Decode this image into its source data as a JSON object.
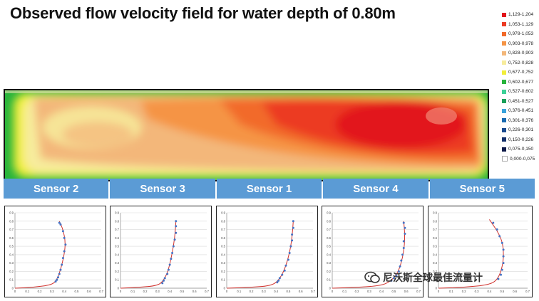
{
  "title": "Observed flow velocity field for water depth of 0.80m",
  "legend": [
    {
      "label": "1,129-1,204",
      "color": "#e2141b"
    },
    {
      "label": "1,053-1,129",
      "color": "#ec3b24"
    },
    {
      "label": "0,978-1,053",
      "color": "#f26a2a"
    },
    {
      "label": "0,903-0,978",
      "color": "#f59445"
    },
    {
      "label": "0,828-0,903",
      "color": "#f3b77a"
    },
    {
      "label": "0,752-0,828",
      "color": "#f7ec9c"
    },
    {
      "label": "0,677-0,752",
      "color": "#f2ee39"
    },
    {
      "label": "0,602-0,677",
      "color": "#28b43c"
    },
    {
      "label": "0,527-0,602",
      "color": "#3cd197"
    },
    {
      "label": "0,451-0,527",
      "color": "#1aa05a"
    },
    {
      "label": "0,376-0,451",
      "color": "#3aa3dc"
    },
    {
      "label": "0,301-0,376",
      "color": "#1a6ab0"
    },
    {
      "label": "0,226-0,301",
      "color": "#1b4b8f"
    },
    {
      "label": "0,150-0,226",
      "color": "#14306a"
    },
    {
      "label": "0,075-0,150",
      "color": "#0e1a48"
    },
    {
      "label": "0,000-0,075",
      "color": "#ffffff"
    }
  ],
  "sensors": [
    "Sensor 2",
    "Sensor 3",
    "Sensor 1",
    "Sensor 4",
    "Sensor 5"
  ],
  "watermark": "尼沃斯全球最佳流量计",
  "chart_data": [
    {
      "type": "scatter",
      "title": "Sensor 2",
      "xlim": [
        0,
        0.7
      ],
      "ylim": [
        0,
        0.9
      ],
      "xticks": [
        "0",
        "0.1",
        "0.2",
        "0.3",
        "0.4",
        "0.5",
        "0.6",
        "0.7"
      ],
      "yticks": [
        "0",
        "0.1",
        "0.2",
        "0.3",
        "0.4",
        "0.5",
        "0.6",
        "0.7",
        "0.8",
        "0.9"
      ],
      "points": [
        [
          0.36,
          0.78
        ],
        [
          0.37,
          0.76
        ],
        [
          0.39,
          0.68
        ],
        [
          0.4,
          0.6
        ],
        [
          0.41,
          0.52
        ],
        [
          0.4,
          0.44
        ],
        [
          0.39,
          0.36
        ],
        [
          0.38,
          0.28
        ],
        [
          0.37,
          0.22
        ],
        [
          0.36,
          0.17
        ],
        [
          0.35,
          0.13
        ],
        [
          0.34,
          0.1
        ],
        [
          0.33,
          0.08
        ]
      ],
      "curve": [
        [
          0.0,
          0.0
        ],
        [
          0.15,
          0.01
        ],
        [
          0.3,
          0.04
        ],
        [
          0.34,
          0.1
        ],
        [
          0.37,
          0.22
        ],
        [
          0.4,
          0.4
        ],
        [
          0.41,
          0.55
        ],
        [
          0.39,
          0.7
        ],
        [
          0.36,
          0.8
        ]
      ]
    },
    {
      "type": "scatter",
      "title": "Sensor 3",
      "xlim": [
        0,
        0.7
      ],
      "ylim": [
        0,
        0.9
      ],
      "xticks": [
        "0",
        "0.1",
        "0.2",
        "0.3",
        "0.4",
        "0.5",
        "0.6",
        "0.7"
      ],
      "yticks": [
        "0",
        "0.1",
        "0.2",
        "0.3",
        "0.4",
        "0.5",
        "0.6",
        "0.7",
        "0.8",
        "0.9"
      ],
      "points": [
        [
          0.45,
          0.8
        ],
        [
          0.45,
          0.74
        ],
        [
          0.45,
          0.66
        ],
        [
          0.44,
          0.58
        ],
        [
          0.43,
          0.5
        ],
        [
          0.42,
          0.42
        ],
        [
          0.41,
          0.35
        ],
        [
          0.4,
          0.28
        ],
        [
          0.39,
          0.22
        ],
        [
          0.38,
          0.17
        ],
        [
          0.36,
          0.12
        ],
        [
          0.35,
          0.09
        ],
        [
          0.34,
          0.06
        ]
      ],
      "curve": [
        [
          0.0,
          0.0
        ],
        [
          0.15,
          0.01
        ],
        [
          0.3,
          0.03
        ],
        [
          0.35,
          0.09
        ],
        [
          0.39,
          0.22
        ],
        [
          0.42,
          0.42
        ],
        [
          0.44,
          0.6
        ],
        [
          0.45,
          0.8
        ]
      ]
    },
    {
      "type": "scatter",
      "title": "Sensor 1",
      "xlim": [
        0,
        0.7
      ],
      "ylim": [
        0,
        0.9
      ],
      "xticks": [
        "0",
        "0.1",
        "0.2",
        "0.3",
        "0.4",
        "0.5",
        "0.6",
        "0.7"
      ],
      "yticks": [
        "0",
        "0.1",
        "0.2",
        "0.3",
        "0.4",
        "0.5",
        "0.6",
        "0.7",
        "0.8",
        "0.9"
      ],
      "points": [
        [
          0.54,
          0.8
        ],
        [
          0.54,
          0.72
        ],
        [
          0.53,
          0.64
        ],
        [
          0.53,
          0.57
        ],
        [
          0.52,
          0.5
        ],
        [
          0.51,
          0.42
        ],
        [
          0.5,
          0.34
        ],
        [
          0.48,
          0.27
        ],
        [
          0.47,
          0.21
        ],
        [
          0.45,
          0.16
        ],
        [
          0.43,
          0.12
        ],
        [
          0.42,
          0.09
        ],
        [
          0.41,
          0.07
        ]
      ],
      "curve": [
        [
          0.0,
          0.0
        ],
        [
          0.2,
          0.01
        ],
        [
          0.36,
          0.03
        ],
        [
          0.42,
          0.09
        ],
        [
          0.47,
          0.22
        ],
        [
          0.51,
          0.42
        ],
        [
          0.53,
          0.6
        ],
        [
          0.54,
          0.8
        ]
      ]
    },
    {
      "type": "scatter",
      "title": "Sensor 4",
      "xlim": [
        0,
        0.7
      ],
      "ylim": [
        0,
        0.9
      ],
      "xticks": [
        "0",
        "0.1",
        "0.2",
        "0.3",
        "0.4",
        "0.5",
        "0.6",
        "0.7"
      ],
      "yticks": [
        "0",
        "0.1",
        "0.2",
        "0.3",
        "0.4",
        "0.5",
        "0.6",
        "0.7",
        "0.8",
        "0.9"
      ],
      "points": [
        [
          0.58,
          0.78
        ],
        [
          0.59,
          0.72
        ],
        [
          0.59,
          0.65
        ],
        [
          0.58,
          0.56
        ],
        [
          0.58,
          0.48
        ],
        [
          0.57,
          0.4
        ],
        [
          0.56,
          0.33
        ],
        [
          0.55,
          0.26
        ],
        [
          0.54,
          0.2
        ],
        [
          0.52,
          0.15
        ],
        [
          0.5,
          0.12
        ],
        [
          0.48,
          0.09
        ]
      ],
      "curve": [
        [
          0.0,
          0.0
        ],
        [
          0.2,
          0.01
        ],
        [
          0.4,
          0.03
        ],
        [
          0.48,
          0.09
        ],
        [
          0.54,
          0.2
        ],
        [
          0.58,
          0.42
        ],
        [
          0.59,
          0.62
        ],
        [
          0.58,
          0.8
        ]
      ]
    },
    {
      "type": "scatter",
      "title": "Sensor 5",
      "xlim": [
        0,
        0.7
      ],
      "ylim": [
        0,
        0.9
      ],
      "xticks": [
        "0",
        "0.1",
        "0.2",
        "0.3",
        "0.4",
        "0.5",
        "0.6",
        "0.7"
      ],
      "yticks": [
        "0",
        "0.1",
        "0.2",
        "0.3",
        "0.4",
        "0.5",
        "0.6",
        "0.7",
        "0.8",
        "0.9"
      ],
      "points": [
        [
          0.43,
          0.78
        ],
        [
          0.46,
          0.7
        ],
        [
          0.48,
          0.62
        ],
        [
          0.5,
          0.54
        ],
        [
          0.51,
          0.46
        ],
        [
          0.51,
          0.38
        ],
        [
          0.51,
          0.3
        ],
        [
          0.5,
          0.22
        ],
        [
          0.49,
          0.16
        ],
        [
          0.47,
          0.11
        ]
      ],
      "curve": [
        [
          0.0,
          0.0
        ],
        [
          0.2,
          0.01
        ],
        [
          0.4,
          0.04
        ],
        [
          0.47,
          0.11
        ],
        [
          0.51,
          0.3
        ],
        [
          0.51,
          0.5
        ],
        [
          0.48,
          0.64
        ],
        [
          0.4,
          0.82
        ]
      ]
    }
  ]
}
